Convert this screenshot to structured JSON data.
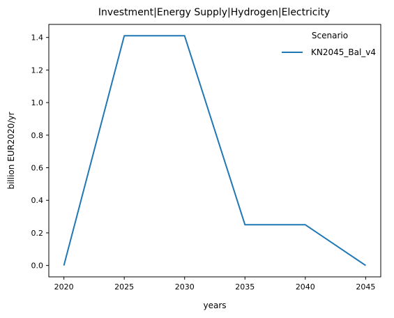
{
  "chart_data": {
    "type": "line",
    "title": "Investment|Energy Supply|Hydrogen|Electricity",
    "xlabel": "years",
    "ylabel": "billion EUR2020/yr",
    "x": [
      2020,
      2025,
      2030,
      2035,
      2040,
      2045
    ],
    "series": [
      {
        "name": "KN2045_Bal_v4",
        "values": [
          0.0,
          1.41,
          1.41,
          0.25,
          0.25,
          0.0
        ]
      }
    ],
    "xlim": [
      2018.75,
      2046.25
    ],
    "ylim": [
      -0.07,
      1.48
    ],
    "xticks": [
      2020,
      2025,
      2030,
      2035,
      2040,
      2045
    ],
    "yticks": [
      0.0,
      0.2,
      0.4,
      0.6,
      0.8,
      1.0,
      1.2,
      1.4
    ],
    "legend": {
      "title": "Scenario",
      "placement": "top-right"
    },
    "grid": false,
    "colors": {
      "series": "#1f77b4",
      "axis": "#000000"
    }
  }
}
